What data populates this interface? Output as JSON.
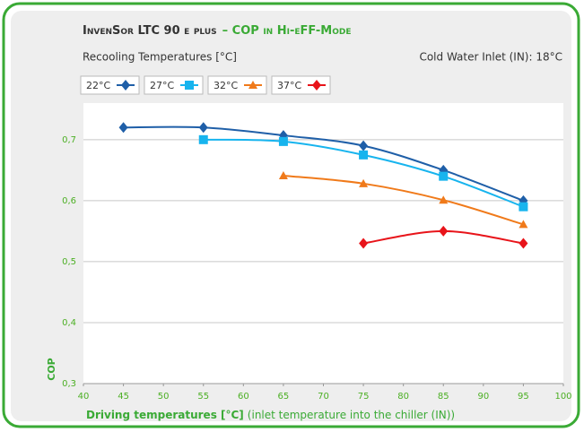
{
  "chart_data": {
    "type": "line",
    "title": [
      "InvenSor LTC 90 e plus",
      "– COP in Hi-eFF-Mode"
    ],
    "subtitle": "Recooling Temperatures [°C]",
    "annotation": "Cold Water Inlet (IN): 18°C",
    "y_label": "COP",
    "x_label": [
      "Driving temperatures [°C]",
      "(inlet temperature into the chiller (IN))"
    ],
    "xlim": [
      40,
      100
    ],
    "xticks": [
      40,
      45,
      50,
      55,
      60,
      65,
      70,
      75,
      80,
      85,
      90,
      95,
      100
    ],
    "ylim": [
      0.3,
      0.76
    ],
    "yticks": [
      {
        "value": 0.3,
        "label": "0,3"
      },
      {
        "value": 0.4,
        "label": "0,4"
      },
      {
        "value": 0.5,
        "label": "0,5"
      },
      {
        "value": 0.6,
        "label": "0,6"
      },
      {
        "value": 0.7,
        "label": "0,7"
      }
    ],
    "grid": true,
    "series": [
      {
        "name": "22°C",
        "color": "#1f5fa8",
        "marker": "diamond",
        "x": [
          45,
          55,
          65,
          75,
          85,
          95
        ],
        "values": [
          0.72,
          0.72,
          0.707,
          0.69,
          0.65,
          0.6
        ]
      },
      {
        "name": "27°C",
        "color": "#17b4ee",
        "marker": "square",
        "x": [
          55,
          65,
          75,
          85,
          95
        ],
        "values": [
          0.7,
          0.697,
          0.675,
          0.64,
          0.59
        ]
      },
      {
        "name": "32°C",
        "color": "#f07a1a",
        "marker": "triangle",
        "x": [
          65,
          75,
          85,
          95
        ],
        "values": [
          0.641,
          0.628,
          0.601,
          0.561
        ]
      },
      {
        "name": "37°C",
        "color": "#e8141a",
        "marker": "diamond",
        "x": [
          75,
          85,
          95
        ],
        "values": [
          0.53,
          0.55,
          0.53
        ]
      }
    ]
  }
}
